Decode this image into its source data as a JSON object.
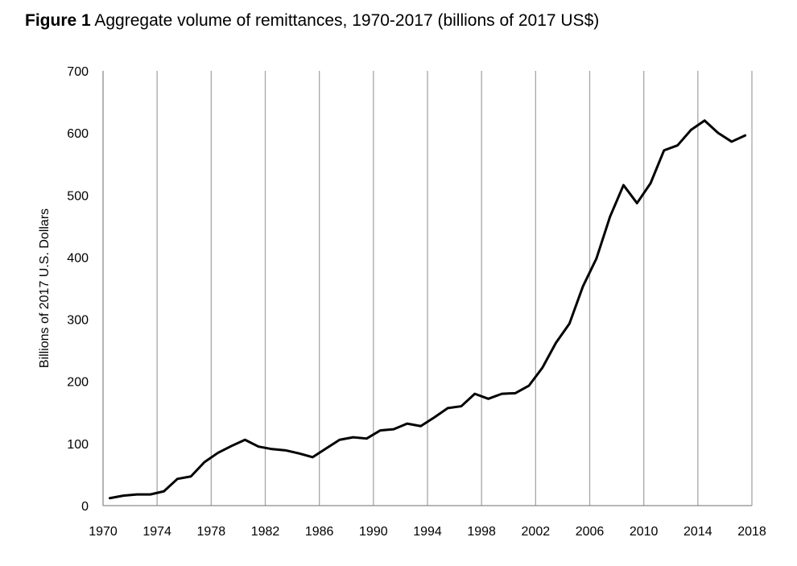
{
  "figure": {
    "label": "Figure 1",
    "caption": "Aggregate volume of remittances, 1970-2017 (billions of 2017 US$)"
  },
  "chart_data": {
    "type": "line",
    "title": "",
    "xlabel": "",
    "ylabel": "Billions of 2017 U.S. Dollars",
    "xlim": [
      1970,
      2018
    ],
    "ylim": [
      0,
      700
    ],
    "x_ticks": [
      "1970",
      "1974",
      "1978",
      "1982",
      "1986",
      "1990",
      "1994",
      "1998",
      "2002",
      "2006",
      "2010",
      "2014",
      "2018"
    ],
    "y_ticks": [
      "0",
      "100",
      "200",
      "300",
      "400",
      "500",
      "600",
      "700"
    ],
    "grid": {
      "vertical": true,
      "horizontal": false
    },
    "legend": "none",
    "line_color": "#000000",
    "series": [
      {
        "x": [
          1970.5,
          1971.5,
          1972.5,
          1973.5,
          1974.5,
          1975.5,
          1976.5,
          1977.5,
          1978.5,
          1979.5,
          1980.5,
          1981.5,
          1982.5,
          1983.5,
          1984.5,
          1985.5,
          1986.5,
          1987.5,
          1988.5,
          1989.5,
          1990.5,
          1991.5,
          1992.5,
          1993.5,
          1994.5,
          1995.5,
          1996.5,
          1997.5,
          1998.5,
          1999.5,
          2000.5,
          2001.5,
          2002.5,
          2003.5,
          2004.5,
          2005.5,
          2006.5,
          2007.5,
          2008.5,
          2009.5,
          2010.5,
          2011.5,
          2012.5,
          2013.5,
          2014.5,
          2015.5,
          2016.5,
          2017.5
        ],
        "values": [
          12,
          16,
          18,
          18,
          23,
          43,
          47,
          70,
          85,
          96,
          106,
          95,
          91,
          89,
          84,
          78,
          92,
          106,
          110,
          108,
          121,
          123,
          132,
          128,
          142,
          157,
          160,
          180,
          172,
          180,
          181,
          193,
          222,
          262,
          293,
          353,
          398,
          465,
          516,
          487,
          519,
          572,
          580,
          605,
          620,
          600,
          586,
          596
        ]
      }
    ]
  }
}
